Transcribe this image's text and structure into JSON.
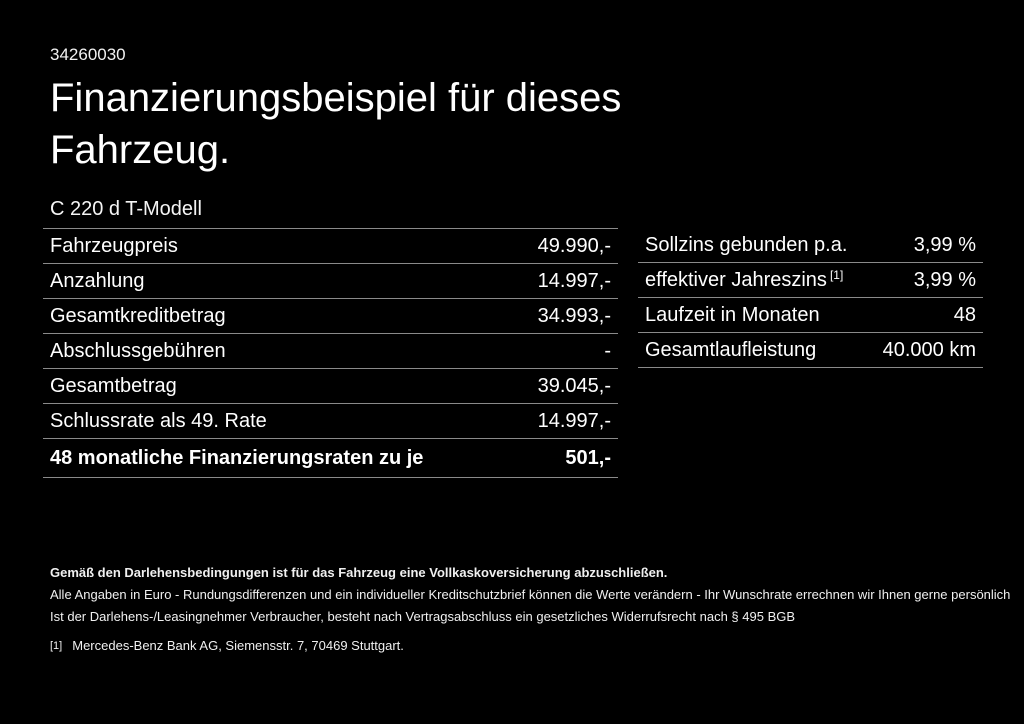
{
  "page": {
    "doc_number": "34260030",
    "title": "Finanzierungsbeispiel für dieses Fahrzeug.",
    "model": "C 220 d T-Modell"
  },
  "finance_table": {
    "rows": [
      {
        "label": "Fahrzeugpreis",
        "value": "49.990,-"
      },
      {
        "label": "Anzahlung",
        "value": "14.997,-"
      },
      {
        "label": "Gesamtkreditbetrag",
        "value": "34.993,-"
      },
      {
        "label": "Abschlussgebühren",
        "value": "-"
      },
      {
        "label": "Gesamtbetrag",
        "value": "39.045,-"
      },
      {
        "label": "Schlussrate als 49. Rate",
        "value": "14.997,-"
      },
      {
        "label": "48 monatliche Finanzierungsraten zu je",
        "value": "501,-"
      }
    ]
  },
  "conditions_table": {
    "rows": [
      {
        "label": "Sollzins gebunden p.a.",
        "value": "3,99 %"
      },
      {
        "label": "effektiver Jahreszins",
        "label_sup": "[1]",
        "value": "3,99 %"
      },
      {
        "label": "Laufzeit in Monaten",
        "value": "48"
      },
      {
        "label": "Gesamtlaufleistung",
        "value": "40.000 km"
      }
    ]
  },
  "footer": {
    "insurance_note": "Gemäß den Darlehensbedingungen ist für das Fahrzeug eine Vollkaskoversicherung abzuschließen.",
    "disclaimer_line1": "Alle Angaben in Euro - Rundungsdifferenzen und ein individueller Kreditschutzbrief können die Werte verändern - Ihr Wunschrate errechnen wir Ihnen gerne persönlich",
    "disclaimer_line2": "Ist der Darlehens-/Leasingnehmer Verbraucher, besteht nach Vertragsabschluss ein gesetzliches Widerrufsrecht nach § 495 BGB",
    "footnote_marker": "[1]",
    "footnote_text": "Mercedes-Benz Bank AG, Siemensstr. 7, 70469 Stuttgart."
  },
  "colors": {
    "background": "#000000",
    "text": "#ffffff",
    "divider": "#8a8a8a"
  }
}
